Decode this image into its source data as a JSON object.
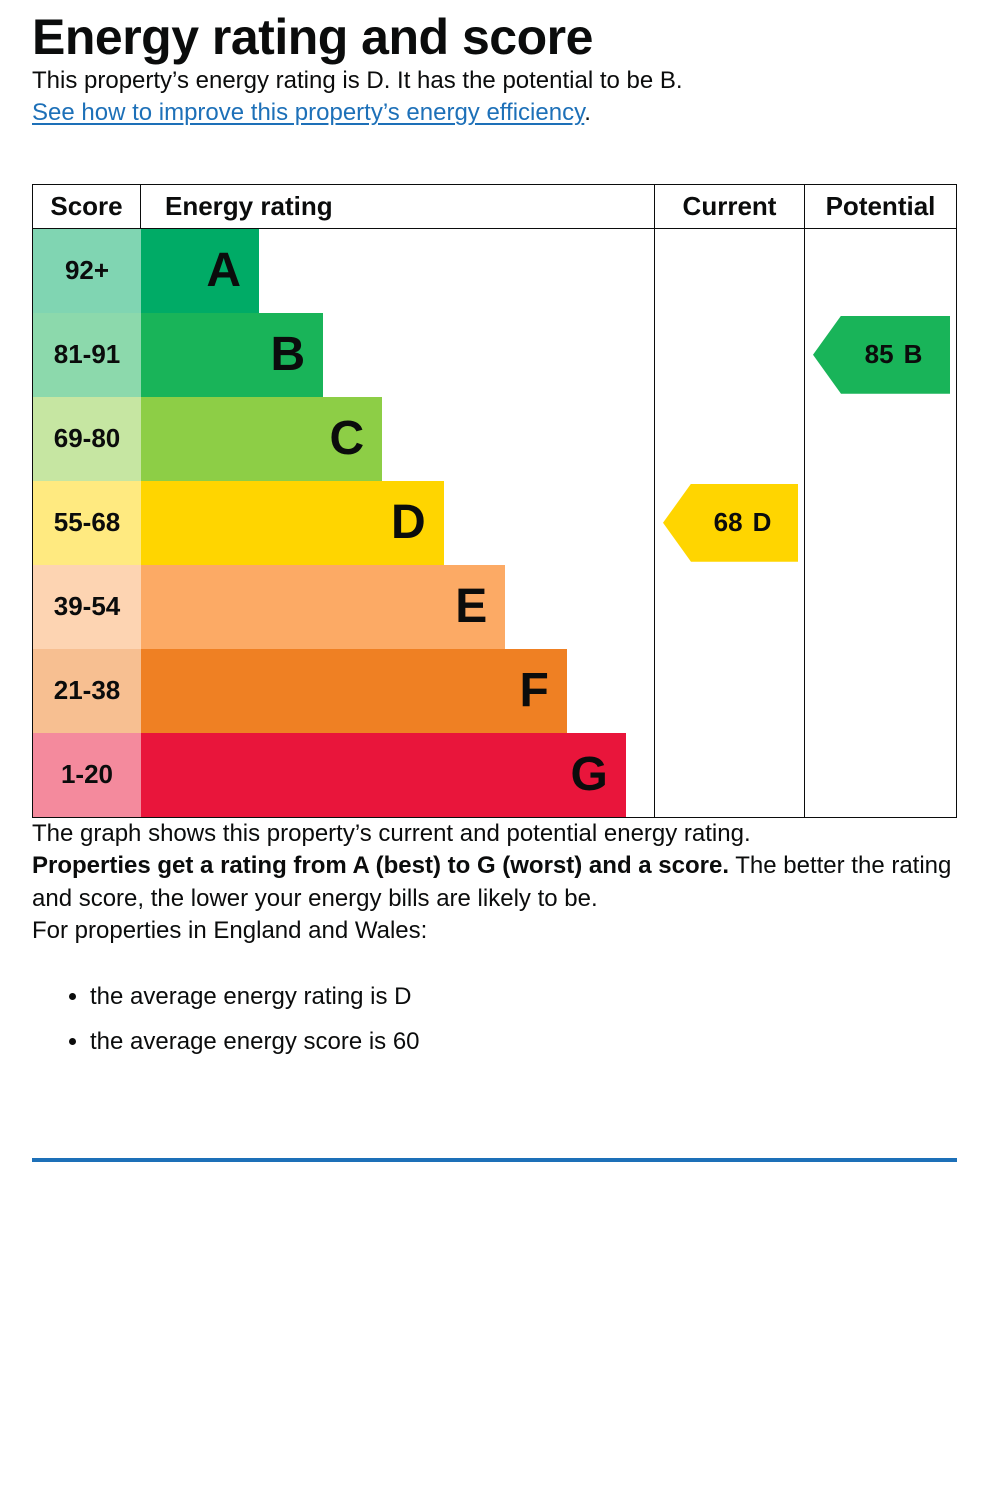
{
  "page": {
    "title": "Energy rating and score",
    "intro": "This property’s energy rating is D. It has the potential to be B.",
    "improve_link_text": "See how to improve this property’s energy efficiency",
    "improve_link_suffix": ".",
    "graph_caption": "The graph shows this property’s current and potential energy rating.",
    "explainer_bold": "Properties get a rating from A (best) to G (worst) and a score.",
    "explainer_rest": " The better the rating and score, the lower your energy bills are likely to be.",
    "regions_heading": "For properties in England and Wales:",
    "bullets": [
      "the average energy rating is D",
      "the average energy score is 60"
    ]
  },
  "chart": {
    "headers": {
      "score": "Score",
      "rating": "Energy rating",
      "current": "Current",
      "potential": "Potential"
    },
    "rows": [
      {
        "score": "92+",
        "letter": "A",
        "color": "#00ab66",
        "tint": "#80d5b2",
        "width_pct": 23
      },
      {
        "score": "81-91",
        "letter": "B",
        "color": "#19b459",
        "tint": "#8cd9ac",
        "width_pct": 35.5
      },
      {
        "score": "69-80",
        "letter": "C",
        "color": "#8dce46",
        "tint": "#c6e6a2",
        "width_pct": 47
      },
      {
        "score": "55-68",
        "letter": "D",
        "color": "#ffd500",
        "tint": "#ffea80",
        "width_pct": 59
      },
      {
        "score": "39-54",
        "letter": "E",
        "color": "#fcaa65",
        "tint": "#fdd4b2",
        "width_pct": 71
      },
      {
        "score": "21-38",
        "letter": "F",
        "color": "#ef8023",
        "tint": "#f7bf91",
        "width_pct": 83
      },
      {
        "score": "1-20",
        "letter": "G",
        "color": "#e9153b",
        "tint": "#f48a9d",
        "width_pct": 94.5
      }
    ],
    "current": {
      "value": "68",
      "letter": "D",
      "color": "#ffd500",
      "row": 3
    },
    "potential": {
      "value": "85",
      "letter": "B",
      "color": "#19b459",
      "row": 1
    }
  },
  "chart_data": {
    "type": "bar",
    "title": "Energy rating and score",
    "categories": [
      "A",
      "B",
      "C",
      "D",
      "E",
      "F",
      "G"
    ],
    "score_ranges": [
      "92+",
      "81-91",
      "69-80",
      "55-68",
      "39-54",
      "21-38",
      "1-20"
    ],
    "band_colors": [
      "#00ab66",
      "#19b459",
      "#8dce46",
      "#ffd500",
      "#fcaa65",
      "#ef8023",
      "#e9153b"
    ],
    "current": {
      "score": 68,
      "band": "D"
    },
    "potential": {
      "score": 85,
      "band": "B"
    },
    "average_england_wales": {
      "rating": "D",
      "score": 60
    },
    "legend_position": "none",
    "grid": false
  },
  "theme": {
    "text_color": "#0b0c0c",
    "link_color": "#1d70b8",
    "rule_color": "#1d70b8",
    "border_color": "#0b0c0c"
  }
}
